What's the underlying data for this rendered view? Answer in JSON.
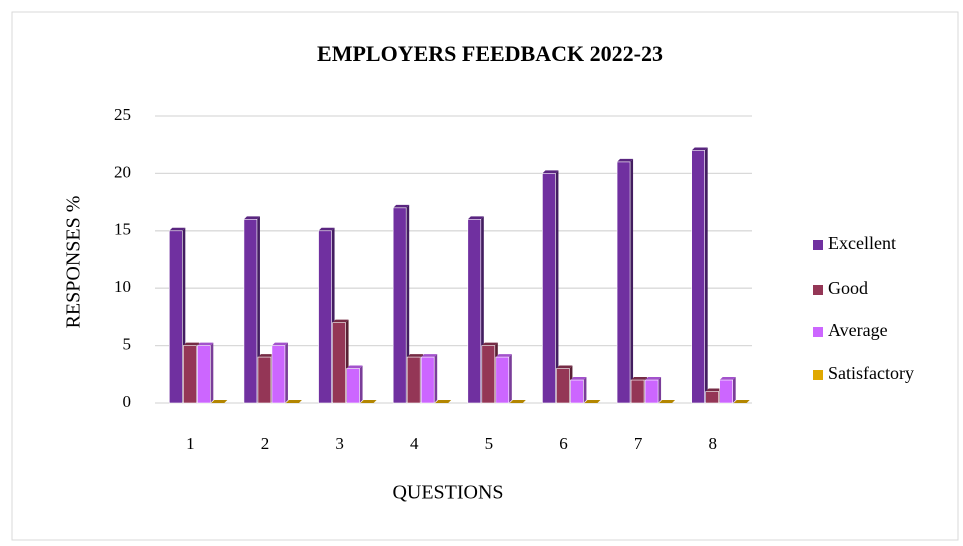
{
  "chart_data": {
    "type": "bar",
    "title": "EMPLOYERS FEEDBACK 2022-23",
    "x_label": "QUESTIONS",
    "y_label": "RESPONSES %",
    "categories": [
      "1",
      "2",
      "3",
      "4",
      "5",
      "6",
      "7",
      "8"
    ],
    "series": [
      {
        "name": "Excellent",
        "color": "#7030a0",
        "values": [
          15,
          16,
          15,
          17,
          16,
          20,
          21,
          22
        ]
      },
      {
        "name": "Good",
        "color": "#943656",
        "values": [
          5,
          4,
          7,
          4,
          5,
          3,
          2,
          1
        ]
      },
      {
        "name": "Average",
        "color": "#cc66ff",
        "values": [
          5,
          5,
          3,
          4,
          4,
          2,
          2,
          2
        ]
      },
      {
        "name": "Satisfactory",
        "color": "#e0a800",
        "values": [
          0,
          0,
          0,
          0,
          0,
          0,
          0,
          0
        ]
      }
    ],
    "ylim": [
      0,
      25
    ],
    "yticks": [
      0,
      5,
      10,
      15,
      20,
      25
    ],
    "grid": true,
    "legend": "right"
  }
}
